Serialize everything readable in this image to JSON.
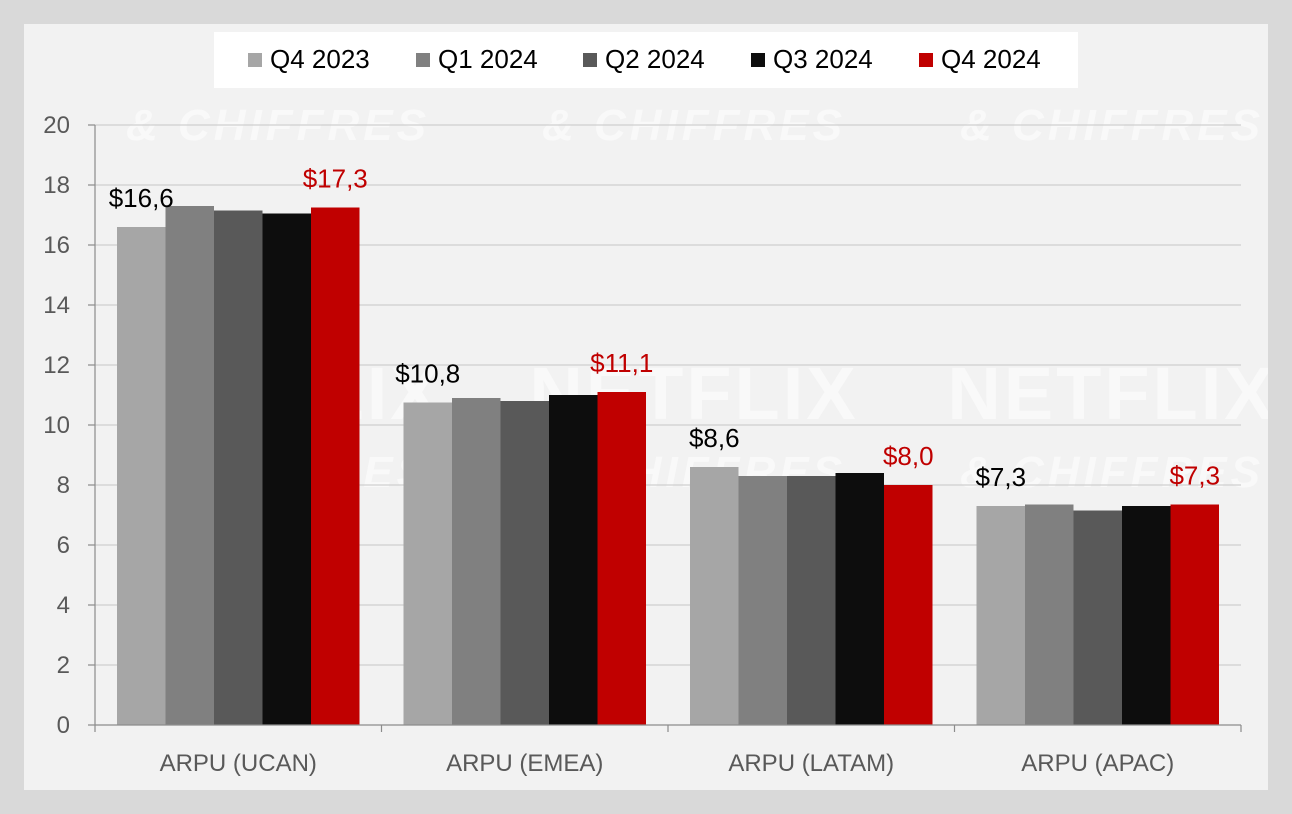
{
  "chart_data": {
    "type": "bar",
    "categories": [
      "ARPU (UCAN)",
      "ARPU (EMEA)",
      "ARPU (LATAM)",
      "ARPU (APAC)"
    ],
    "series": [
      {
        "name": "Q4 2023",
        "color": "#a6a6a6",
        "values": [
          16.6,
          10.75,
          8.6,
          7.3
        ]
      },
      {
        "name": "Q1 2024",
        "color": "#808080",
        "values": [
          17.3,
          10.9,
          8.3,
          7.35
        ]
      },
      {
        "name": "Q2 2024",
        "color": "#595959",
        "values": [
          17.15,
          10.8,
          8.3,
          7.15
        ]
      },
      {
        "name": "Q3 2024",
        "color": "#0d0d0d",
        "values": [
          17.05,
          11.0,
          8.4,
          7.3
        ]
      },
      {
        "name": "Q4 2024",
        "color": "#c00000",
        "values": [
          17.25,
          11.1,
          8.0,
          7.35
        ]
      }
    ],
    "data_labels": [
      {
        "category": 0,
        "series": 0,
        "text": "$16,6",
        "color": "#000000"
      },
      {
        "category": 0,
        "series": 4,
        "text": "$17,3",
        "color": "#c00000"
      },
      {
        "category": 1,
        "series": 0,
        "text": "$10,8",
        "color": "#000000"
      },
      {
        "category": 1,
        "series": 4,
        "text": "$11,1",
        "color": "#c00000"
      },
      {
        "category": 2,
        "series": 0,
        "text": "$8,6",
        "color": "#000000"
      },
      {
        "category": 2,
        "series": 4,
        "text": "$8,0",
        "color": "#c00000"
      },
      {
        "category": 3,
        "series": 0,
        "text": "$7,3",
        "color": "#000000"
      },
      {
        "category": 3,
        "series": 4,
        "text": "$7,3",
        "color": "#c00000"
      }
    ],
    "ylim": [
      0,
      20
    ],
    "yticks": [
      "0",
      "2",
      "4",
      "6",
      "8",
      "10",
      "12",
      "14",
      "16",
      "18",
      "20"
    ],
    "grid": true,
    "legend_position": "top-center",
    "title": "",
    "xlabel": "",
    "ylabel": ""
  },
  "watermark": {
    "main": "NETFLIX",
    "sub": "& CHIFFRES"
  }
}
